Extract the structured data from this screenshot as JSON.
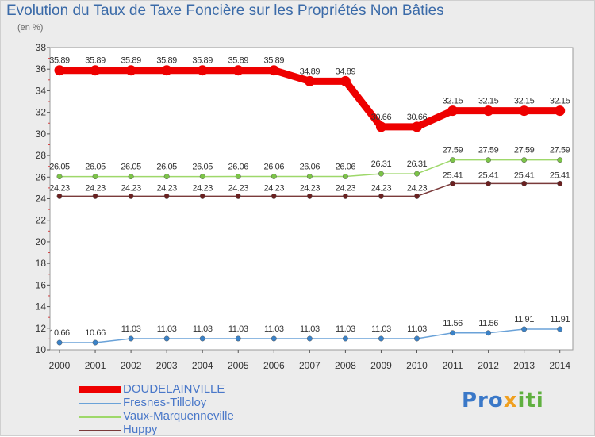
{
  "header": {
    "title": "Evolution du Taux de Taxe Foncière sur les Propriétés Non Bâties",
    "unit": "(en %)"
  },
  "chart_data": {
    "type": "line",
    "title": "Evolution du Taux de Taxe Foncière sur les Propriétés Non Bâties",
    "ylabel": "(en %)",
    "xlabel": "",
    "ylim": [
      10,
      38
    ],
    "yticks": [
      10,
      12,
      14,
      16,
      18,
      20,
      22,
      24,
      26,
      28,
      30,
      32,
      34,
      36,
      38
    ],
    "categories": [
      "2000",
      "2001",
      "2002",
      "2003",
      "2004",
      "2005",
      "2006",
      "2007",
      "2008",
      "2009",
      "2010",
      "2011",
      "2012",
      "2013",
      "2014"
    ],
    "series": [
      {
        "name": "DOUDELAINVILLE",
        "color": "#ee0000",
        "marker": "#ee0000",
        "width": 9,
        "values": [
          35.89,
          35.89,
          35.89,
          35.89,
          35.89,
          35.89,
          35.89,
          34.89,
          34.89,
          30.66,
          30.66,
          32.15,
          32.15,
          32.15,
          32.15
        ],
        "labels": [
          "35.89",
          "35.89",
          "35.89",
          "35.89",
          "35.89",
          "35.89",
          "35.89",
          "34.89",
          "34.89",
          "30.66",
          "30.66",
          "32.15",
          "32.15",
          "32.15",
          "32.15"
        ]
      },
      {
        "name": "Fresnes-Tilloloy",
        "color": "#6aa2d8",
        "marker": "#3a82c8",
        "width": 1.5,
        "values": [
          10.66,
          10.66,
          11.03,
          11.03,
          11.03,
          11.03,
          11.03,
          11.03,
          11.03,
          11.03,
          11.03,
          11.56,
          11.56,
          11.91,
          11.91
        ],
        "labels": [
          "10.66",
          "10.66",
          "11.03",
          "11.03",
          "11.03",
          "11.03",
          "11.03",
          "11.03",
          "11.03",
          "11.03",
          "11.03",
          "11.56",
          "11.56",
          "11.91",
          "11.91"
        ]
      },
      {
        "name": "Vaux-Marquenneville",
        "color": "#9ed86a",
        "marker": "#7cc448",
        "width": 1.5,
        "values": [
          26.05,
          26.05,
          26.05,
          26.05,
          26.05,
          26.06,
          26.06,
          26.06,
          26.06,
          26.31,
          26.31,
          27.59,
          27.59,
          27.59,
          27.59
        ],
        "labels": [
          "26.05",
          "26.05",
          "26.05",
          "26.05",
          "26.05",
          "26.06",
          "26.06",
          "26.06",
          "26.06",
          "26.31",
          "26.31",
          "27.59",
          "27.59",
          "27.59",
          "27.59"
        ]
      },
      {
        "name": "Huppy",
        "color": "#7a3a3a",
        "marker": "#6a2020",
        "width": 1.5,
        "values": [
          24.23,
          24.23,
          24.23,
          24.23,
          24.23,
          24.23,
          24.23,
          24.23,
          24.23,
          24.23,
          24.23,
          25.41,
          25.41,
          25.41,
          25.41
        ],
        "labels": [
          "24.23",
          "24.23",
          "24.23",
          "24.23",
          "24.23",
          "24.23",
          "24.23",
          "24.23",
          "24.23",
          "24.23",
          "24.23",
          "25.41",
          "25.41",
          "25.41",
          "25.41"
        ]
      }
    ],
    "grid": false,
    "legend_position": "bottom-left"
  },
  "logo": {
    "p1": "Pro",
    "p2": "x",
    "p3": "iti"
  }
}
